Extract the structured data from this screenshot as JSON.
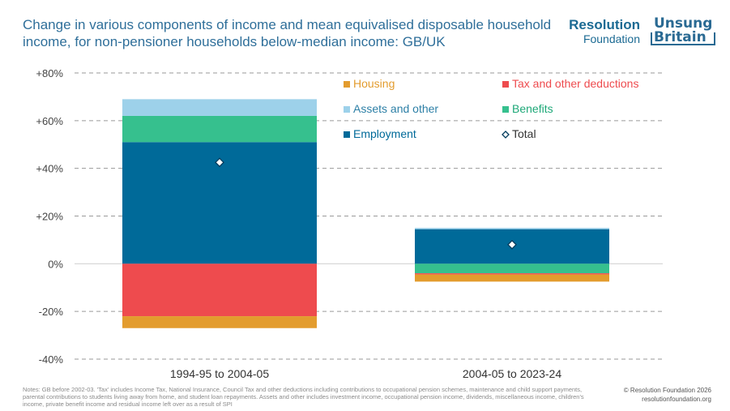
{
  "title": "Change in various components of income and mean equivalised disposable household income, for non-pensioner households below-median income: GB/UK",
  "logos": {
    "resolution_line1": "Resolution",
    "resolution_line2": "Foundation",
    "unsung_line1": "Unsung",
    "unsung_line2": "Britain"
  },
  "notes": "Notes: GB before 2002-03. 'Tax' includes Income Tax, National Insurance, Council Tax and other deductions including contributions to occupational pension schemes, maintenance and child support payments, parental contributions to students living away from home, and student loan repayments. Assets and other includes investment income, occupational pension income, dividends, miscellaneous income, children's income, private benefit income and residual income left over as a result of SPI",
  "credit": {
    "copyright": "© Resolution Foundation 2026",
    "website": "resolutionfoundation.org"
  },
  "colors": {
    "housing": "#e39c2e",
    "tax": "#ee4b4e",
    "assets": "#9dd1ea",
    "benefits": "#36c08e",
    "employment": "#006a99",
    "total_marker": "#003b5c",
    "grid": "#9a9a9a",
    "zero": "#d0d0d0"
  },
  "chart_data": {
    "type": "bar",
    "stacked": true,
    "categories": [
      "1994-95 to 2004-05",
      "2004-05 to 2023-24"
    ],
    "ylim": [
      -40,
      80
    ],
    "yticks": [
      {
        "value": 80,
        "label": "+80%"
      },
      {
        "value": 60,
        "label": "+60%"
      },
      {
        "value": 40,
        "label": "+40%"
      },
      {
        "value": 20,
        "label": "+20%"
      },
      {
        "value": 0,
        "label": "0%"
      },
      {
        "value": -20,
        "label": "-20%"
      },
      {
        "value": -40,
        "label": "-40%"
      }
    ],
    "series": [
      {
        "key": "employment",
        "name": "Employment",
        "values": [
          51,
          14.5
        ]
      },
      {
        "key": "benefits",
        "name": "Benefits",
        "values": [
          11,
          -4
        ]
      },
      {
        "key": "assets",
        "name": "Assets and other",
        "values": [
          7,
          0.5
        ]
      },
      {
        "key": "tax",
        "name": "Tax and other deductions",
        "values": [
          -22,
          -0.5
        ]
      },
      {
        "key": "housing",
        "name": "Housing",
        "values": [
          -5,
          -3
        ]
      }
    ],
    "total": {
      "name": "Total",
      "values": [
        42.5,
        8
      ]
    },
    "legend": [
      {
        "key": "housing",
        "label": "Housing"
      },
      {
        "key": "tax",
        "label": "Tax and other deductions"
      },
      {
        "key": "assets",
        "label": "Assets and other"
      },
      {
        "key": "benefits",
        "label": "Benefits"
      },
      {
        "key": "employment",
        "label": "Employment"
      },
      {
        "key": "total",
        "label": "Total"
      }
    ],
    "legend_position": "top-right"
  }
}
